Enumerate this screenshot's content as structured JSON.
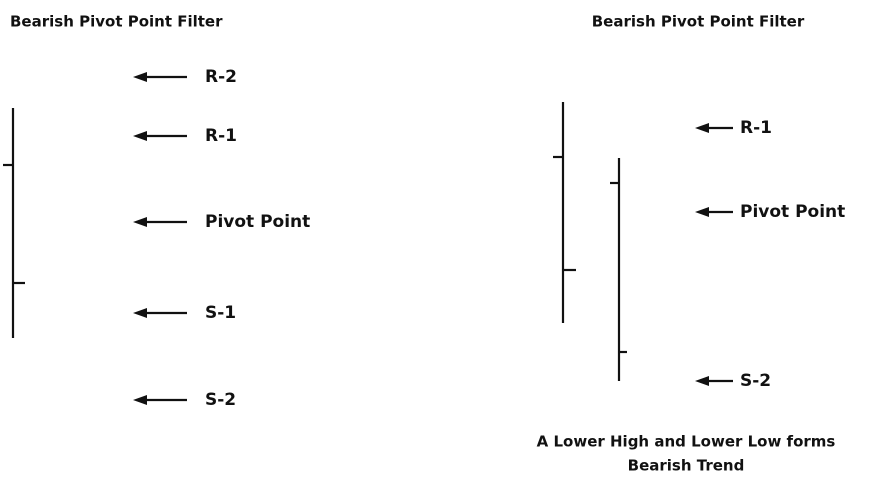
{
  "left": {
    "title": "Bearish Pivot Point Filter",
    "labels": [
      "R-2",
      "R-1",
      "Pivot Point",
      "S-1",
      "S-2"
    ]
  },
  "right": {
    "title": "Bearish Pivot Point Filter",
    "labels": [
      "R-1",
      "Pivot Point",
      "S-2"
    ],
    "caption": [
      "A Lower High and Lower Low forms",
      "Bearish Trend"
    ]
  }
}
